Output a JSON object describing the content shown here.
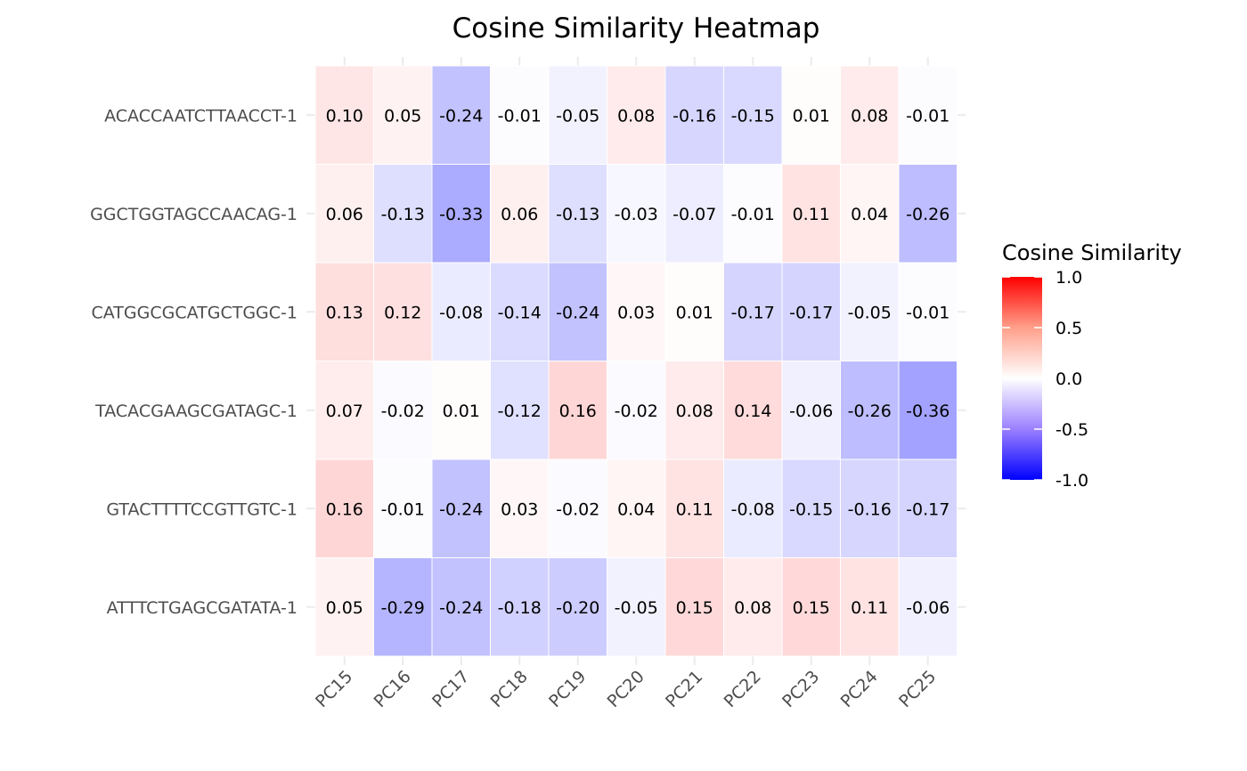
{
  "chart_data": {
    "type": "heatmap",
    "title": "Cosine Similarity Heatmap",
    "xlabel": "",
    "ylabel": "",
    "x_categories": [
      "PC15",
      "PC16",
      "PC17",
      "PC18",
      "PC19",
      "PC20",
      "PC21",
      "PC22",
      "PC23",
      "PC24",
      "PC25"
    ],
    "y_categories": [
      "ACACCAATCTTAACCT-1",
      "GGCTGGTAGCCAACAG-1",
      "CATGGCGCATGCTGGC-1",
      "TACACGAAGCGATAGC-1",
      "GTACTTTTCCGTTGTC-1",
      "ATTTCTGAGCGATATA-1"
    ],
    "values": [
      [
        0.1,
        0.05,
        -0.24,
        -0.01,
        -0.05,
        0.08,
        -0.16,
        -0.15,
        0.01,
        0.08,
        -0.01
      ],
      [
        0.06,
        -0.13,
        -0.33,
        0.06,
        -0.13,
        -0.03,
        -0.07,
        -0.01,
        0.11,
        0.04,
        -0.26
      ],
      [
        0.13,
        0.12,
        -0.08,
        -0.14,
        -0.24,
        0.03,
        0.01,
        -0.17,
        -0.17,
        -0.05,
        -0.01
      ],
      [
        0.07,
        -0.02,
        0.01,
        -0.12,
        0.16,
        -0.02,
        0.08,
        0.14,
        -0.06,
        -0.26,
        -0.36
      ],
      [
        0.16,
        -0.01,
        -0.24,
        0.03,
        -0.02,
        0.04,
        0.11,
        -0.08,
        -0.15,
        -0.16,
        -0.17
      ],
      [
        0.05,
        -0.29,
        -0.24,
        -0.18,
        -0.2,
        -0.05,
        0.15,
        0.08,
        0.15,
        0.11,
        -0.06
      ]
    ],
    "labels": [
      [
        "0.10",
        "0.05",
        "-0.24",
        "-0.01",
        "-0.05",
        "0.08",
        "-0.16",
        "-0.15",
        "0.01",
        "0.08",
        "-0.01"
      ],
      [
        "0.06",
        "-0.13",
        "-0.33",
        "0.06",
        "-0.13",
        "-0.03",
        "-0.07",
        "-0.01",
        "0.11",
        "0.04",
        "-0.26"
      ],
      [
        "0.13",
        "0.12",
        "-0.08",
        "-0.14",
        "-0.24",
        "0.03",
        "0.01",
        "-0.17",
        "-0.17",
        "-0.05",
        "-0.01"
      ],
      [
        "0.07",
        "-0.02",
        "0.01",
        "-0.12",
        "0.16",
        "-0.02",
        "0.08",
        "0.14",
        "-0.06",
        "-0.26",
        "-0.36"
      ],
      [
        "0.16",
        "-0.01",
        "-0.24",
        "0.03",
        "-0.02",
        "0.04",
        "0.11",
        "-0.08",
        "-0.15",
        "-0.16",
        "-0.17"
      ],
      [
        "0.05",
        "-0.29",
        "-0.24",
        "-0.18",
        "-0.20",
        "-0.05",
        "0.15",
        "0.08",
        "0.15",
        "0.11",
        "-0.06"
      ]
    ],
    "color_scale": {
      "low": "#0000ff",
      "mid": "#ffffff",
      "high": "#ff0000",
      "limits": [
        -1,
        1
      ]
    },
    "legend": {
      "title": "Cosine Similarity",
      "position": "right",
      "ticks": [
        1.0,
        0.5,
        0.0,
        -0.5,
        -1.0
      ],
      "tick_labels": [
        "1.0",
        "0.5",
        "0.0",
        "-0.5",
        "-1.0"
      ]
    },
    "grid": true
  }
}
